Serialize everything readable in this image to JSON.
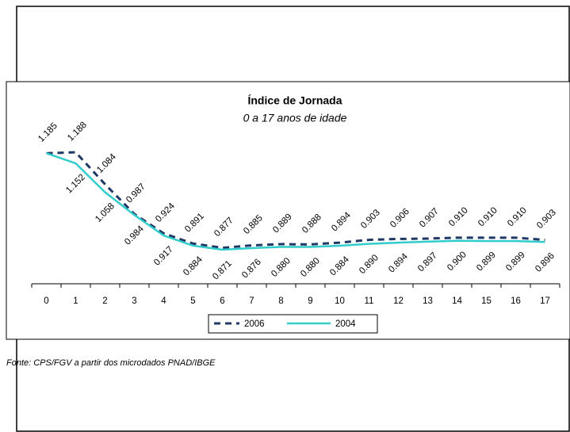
{
  "chart_data": {
    "type": "line",
    "title": "Índice de Jornada",
    "subtitle": "0 a 17 anos de idade",
    "source": "Fonte: CPS/FGV a partir dos microdados PNAD/IBGE",
    "categories": [
      0,
      1,
      2,
      3,
      4,
      5,
      6,
      7,
      8,
      9,
      10,
      11,
      12,
      13,
      14,
      15,
      16,
      17
    ],
    "ylim": [
      0.76,
      1.4
    ],
    "legend": "bottom",
    "series": [
      {
        "name": "2006",
        "color": "#1f3864",
        "dashed": true,
        "values": [
          1.185,
          1.188,
          1.084,
          0.987,
          0.924,
          0.891,
          0.877,
          0.885,
          0.889,
          0.888,
          0.894,
          0.903,
          0.906,
          0.907,
          0.91,
          0.91,
          0.91,
          0.903
        ],
        "value_labels": [
          "1.185",
          "1.188",
          "1.084",
          "0.987",
          "0.924",
          "0.891",
          "0.877",
          "0.885",
          "0.889",
          "0.888",
          "0.894",
          "0.903",
          "0.906",
          "0.907",
          "0.910",
          "0.910",
          "0.910",
          "0.903"
        ]
      },
      {
        "name": "2004",
        "color": "#33cccc",
        "dashed": false,
        "values": [
          1.185,
          1.152,
          1.058,
          0.984,
          0.917,
          0.884,
          0.871,
          0.876,
          0.88,
          0.88,
          0.884,
          0.89,
          0.894,
          0.897,
          0.9,
          0.899,
          0.899,
          0.896
        ],
        "value_labels": [
          null,
          "1.152",
          "1.058",
          "0.984",
          "0.917",
          "0.884",
          "0.871",
          "0.876",
          "0.880",
          "0.880",
          "0.884",
          "0.890",
          "0.894",
          "0.897",
          "0.900",
          "0.899",
          "0.899",
          "0.896"
        ]
      }
    ]
  }
}
